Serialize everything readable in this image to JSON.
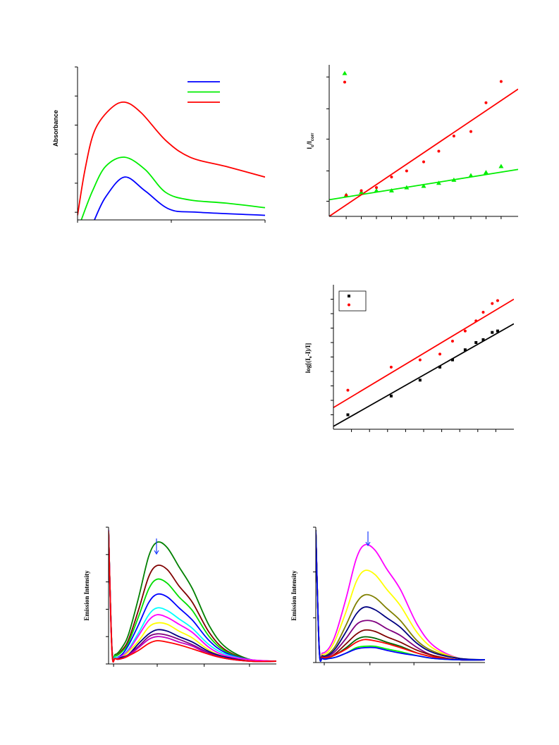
{
  "chart_data": [
    {
      "type": "line",
      "ylabel": [
        {
          "text": "Absorbance"
        }
      ],
      "xlim": [
        0,
        100
      ],
      "ylim": [
        0,
        100
      ],
      "xticks": [
        0,
        50,
        100
      ],
      "yticks": [
        5,
        24,
        43,
        62,
        81,
        100
      ],
      "legend": "upper right",
      "series": [
        {
          "color": "#0000ff",
          "x": [
            9,
            15,
            25,
            36,
            49,
            64,
            100
          ],
          "values": [
            0,
            15,
            28,
            19,
            7,
            5,
            3
          ]
        },
        {
          "color": "#00ee00",
          "x": [
            2,
            8,
            15,
            25,
            36,
            47,
            60,
            79,
            100
          ],
          "values": [
            0,
            19,
            35,
            41,
            33,
            18,
            13,
            11,
            8
          ]
        },
        {
          "color": "#ff0000",
          "x": [
            0,
            4,
            9,
            17,
            25,
            34,
            47,
            60,
            79,
            100
          ],
          "values": [
            3,
            33,
            58,
            72,
            77,
            70,
            52,
            41,
            35,
            28
          ]
        }
      ]
    },
    {
      "type": "scatter",
      "ylabel": [
        {
          "text": "I"
        },
        {
          "text": "o",
          "sub": true
        },
        {
          "text": "/I"
        },
        {
          "text": "corr",
          "sub": true
        }
      ],
      "xlim": [
        0,
        100
      ],
      "ylim": [
        0,
        100
      ],
      "xticks": [
        9,
        17,
        25,
        33,
        41,
        50,
        58,
        66,
        75,
        83,
        91
      ],
      "yticks": [
        10,
        30,
        51,
        71,
        92
      ],
      "legend": "upper left",
      "series": [
        {
          "color": "#00ee00",
          "marker": "triangle",
          "x": [
            9,
            17,
            25,
            33,
            41,
            50,
            58,
            66,
            75,
            83,
            91
          ],
          "values": [
            14,
            16,
            17,
            17,
            19,
            20,
            22,
            24,
            27,
            29,
            33
          ],
          "fit": {
            "x": [
              0,
              100
            ],
            "values": [
              11,
              31
            ]
          }
        },
        {
          "color": "#ff0000",
          "marker": "circle",
          "x": [
            9,
            17,
            25,
            33,
            41,
            50,
            58,
            66,
            75,
            83,
            91
          ],
          "values": [
            14,
            17,
            19,
            26,
            30,
            36,
            43,
            53,
            56,
            75,
            89
          ],
          "fit": {
            "x": [
              0,
              100
            ],
            "values": [
              0,
              84
            ]
          }
        }
      ]
    },
    {
      "type": "scatter",
      "ylabel": [
        {
          "text": "log[(I"
        },
        {
          "text": "o",
          "sub": true
        },
        {
          "text": "-I)/I]"
        }
      ],
      "xlim": [
        0,
        100
      ],
      "ylim": [
        0,
        100
      ],
      "xticks": [
        10,
        20,
        30,
        40,
        50,
        60,
        70,
        80,
        90
      ],
      "yticks": [
        10,
        20,
        30,
        40,
        50,
        60,
        70,
        80,
        90
      ],
      "legend": "upper left",
      "series": [
        {
          "color": "#000000",
          "marker": "square",
          "x": [
            8,
            32,
            48,
            59,
            66,
            73,
            79,
            83,
            88,
            91
          ],
          "values": [
            10,
            23,
            34,
            43,
            48,
            55,
            60,
            62,
            67,
            68
          ],
          "fit": {
            "x": [
              0,
              100
            ],
            "values": [
              2,
              73
            ]
          }
        },
        {
          "color": "#ff0000",
          "marker": "circle",
          "x": [
            8,
            32,
            48,
            59,
            66,
            73,
            79,
            83,
            88,
            91
          ],
          "values": [
            27,
            43,
            48,
            52,
            61,
            68,
            75,
            81,
            87,
            89
          ],
          "fit": {
            "x": [
              0,
              100
            ],
            "values": [
              15,
              90
            ]
          }
        }
      ]
    },
    {
      "type": "line",
      "ylabel": [
        {
          "text": "Emission Intensity"
        }
      ],
      "xlim": [
        0,
        100
      ],
      "ylim": [
        0,
        100
      ],
      "xticks": [
        3,
        29,
        57,
        84
      ],
      "yticks": [
        0,
        20,
        40,
        60,
        80,
        100
      ],
      "x": [
        0,
        2,
        4,
        8,
        12,
        18,
        24,
        29,
        35,
        42,
        50,
        60,
        70,
        85,
        100
      ],
      "series": [
        {
          "color": "#008000",
          "values": [
            98,
            12,
            7,
            12,
            22,
            49,
            79,
            89,
            85,
            71,
            55,
            28,
            12,
            3,
            2
          ]
        },
        {
          "color": "#800000",
          "values": [
            98,
            12,
            6,
            10,
            18,
            40,
            64,
            72,
            69,
            57,
            45,
            23,
            10,
            3,
            2
          ]
        },
        {
          "color": "#00dd00",
          "values": [
            98,
            12,
            6,
            9,
            16,
            35,
            55,
            62,
            59,
            49,
            39,
            20,
            9,
            3,
            2
          ]
        },
        {
          "color": "#0000ff",
          "values": [
            98,
            11,
            5,
            7,
            14,
            29,
            45,
            51,
            49,
            41,
            32,
            17,
            8,
            3,
            2
          ]
        },
        {
          "color": "#00ffff",
          "values": [
            98,
            11,
            5,
            6,
            11,
            23,
            36,
            41,
            39,
            33,
            26,
            14,
            7,
            3,
            2
          ]
        },
        {
          "color": "#ff00ff",
          "values": [
            98,
            11,
            4,
            6,
            10,
            21,
            32,
            36,
            34,
            29,
            23,
            12,
            6,
            3,
            2
          ]
        },
        {
          "color": "#ffff00",
          "values": [
            97,
            11,
            4,
            5,
            9,
            17,
            27,
            30,
            29,
            24,
            19,
            10,
            5,
            2,
            2
          ]
        },
        {
          "color": "#000080",
          "values": [
            97,
            11,
            4,
            5,
            7,
            15,
            22,
            25,
            24,
            20,
            16,
            9,
            5,
            2,
            2
          ]
        },
        {
          "color": "#800080",
          "values": [
            97,
            11,
            4,
            4,
            7,
            13,
            20,
            22,
            21,
            18,
            14,
            8,
            4,
            2,
            2
          ]
        },
        {
          "color": "#c000c0",
          "values": [
            97,
            10,
            4,
            4,
            6,
            12,
            18,
            20,
            19,
            16,
            13,
            7,
            4,
            2,
            2
          ]
        },
        {
          "color": "#ff0000",
          "values": [
            97,
            10,
            4,
            4,
            6,
            10,
            15,
            17,
            16,
            14,
            11,
            7,
            4,
            2,
            2
          ]
        }
      ]
    },
    {
      "type": "line",
      "ylabel": [
        {
          "text": "Emission Intensity"
        }
      ],
      "xlim": [
        0,
        100
      ],
      "ylim": [
        0,
        100
      ],
      "xticks": [
        5,
        32,
        58,
        85
      ],
      "yticks": [
        0,
        33,
        67,
        100
      ],
      "x": [
        0,
        2,
        4,
        8,
        12,
        18,
        24,
        29,
        35,
        42,
        50,
        60,
        70,
        85,
        100
      ],
      "series": [
        {
          "color": "#ff00ff",
          "values": [
            98,
            12,
            7,
            11,
            22,
            48,
            77,
            87,
            83,
            69,
            54,
            28,
            12,
            3,
            2
          ]
        },
        {
          "color": "#ffff00",
          "values": [
            98,
            12,
            6,
            9,
            18,
            38,
            60,
            68,
            65,
            54,
            42,
            22,
            10,
            3,
            2
          ]
        },
        {
          "color": "#808000",
          "values": [
            98,
            11,
            5,
            7,
            13,
            28,
            44,
            50,
            48,
            40,
            31,
            16,
            8,
            3,
            2
          ]
        },
        {
          "color": "#000080",
          "values": [
            98,
            11,
            5,
            6,
            11,
            23,
            36,
            41,
            39,
            33,
            26,
            14,
            7,
            3,
            2
          ]
        },
        {
          "color": "#800080",
          "values": [
            97,
            11,
            4,
            5,
            9,
            18,
            28,
            31,
            30,
            25,
            20,
            11,
            5,
            2,
            2
          ]
        },
        {
          "color": "#800000",
          "values": [
            97,
            11,
            4,
            4,
            7,
            14,
            21,
            24,
            23,
            19,
            15,
            9,
            5,
            2,
            2
          ]
        },
        {
          "color": "#006400",
          "values": [
            97,
            10,
            4,
            4,
            6,
            11,
            17,
            19,
            18,
            15,
            12,
            7,
            4,
            2,
            2
          ]
        },
        {
          "color": "#ff0000",
          "values": [
            97,
            10,
            4,
            4,
            6,
            10,
            15,
            17,
            16,
            14,
            11,
            7,
            4,
            2,
            2
          ]
        },
        {
          "color": "#00ff00",
          "values": [
            97,
            10,
            3,
            3,
            4,
            7,
            11,
            12,
            12,
            10,
            8,
            5,
            3,
            2,
            2
          ]
        },
        {
          "color": "#0000ff",
          "values": [
            97,
            10,
            3,
            3,
            4,
            7,
            10,
            11,
            11,
            9,
            7,
            5,
            3,
            2,
            2
          ]
        }
      ]
    }
  ]
}
